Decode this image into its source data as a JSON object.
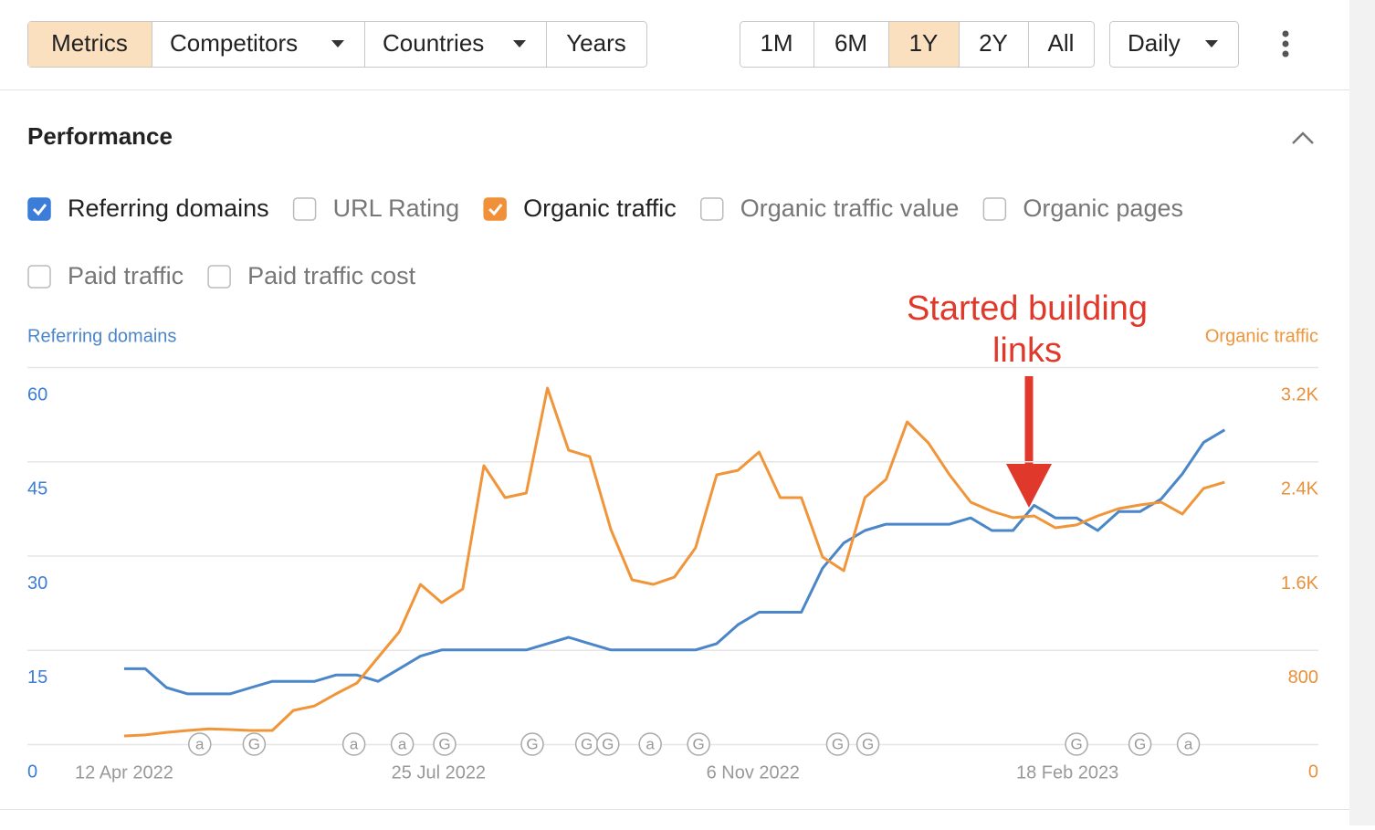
{
  "toolbar": {
    "tabs": [
      {
        "label": "Metrics",
        "selected": true
      },
      {
        "label": "Competitors",
        "dropdown": true
      },
      {
        "label": "Countries",
        "dropdown": true
      },
      {
        "label": "Years"
      }
    ],
    "ranges": [
      {
        "label": "1M"
      },
      {
        "label": "6M"
      },
      {
        "label": "1Y",
        "selected": true
      },
      {
        "label": "2Y"
      },
      {
        "label": "All"
      }
    ],
    "interval": {
      "label": "Daily",
      "dropdown": true
    }
  },
  "section_title": "Performance",
  "checkboxes": [
    {
      "label": "Referring domains",
      "checked": true,
      "color": "#3b7dd8"
    },
    {
      "label": "URL Rating",
      "checked": false
    },
    {
      "label": "Organic traffic",
      "checked": true,
      "color": "#f0913a"
    },
    {
      "label": "Organic traffic value",
      "checked": false
    },
    {
      "label": "Organic pages",
      "checked": false
    },
    {
      "label": "Paid traffic",
      "checked": false
    },
    {
      "label": "Paid traffic cost",
      "checked": false
    }
  ],
  "chart_data": {
    "type": "line",
    "ylabel": "Referring domains",
    "y2label": "Organic traffic",
    "annotation": "Started building links",
    "x": [
      "2022-04-12",
      "2022-04-19",
      "2022-04-26",
      "2022-05-03",
      "2022-05-10",
      "2022-05-17",
      "2022-05-24",
      "2022-05-31",
      "2022-06-07",
      "2022-06-14",
      "2022-06-21",
      "2022-06-28",
      "2022-07-05",
      "2022-07-12",
      "2022-07-19",
      "2022-07-26",
      "2022-08-02",
      "2022-08-09",
      "2022-08-16",
      "2022-08-23",
      "2022-08-30",
      "2022-09-06",
      "2022-09-13",
      "2022-09-20",
      "2022-09-27",
      "2022-10-04",
      "2022-10-11",
      "2022-10-18",
      "2022-10-25",
      "2022-11-01",
      "2022-11-08",
      "2022-11-15",
      "2022-11-22",
      "2022-11-29",
      "2022-12-06",
      "2022-12-13",
      "2022-12-20",
      "2022-12-27",
      "2023-01-03",
      "2023-01-10",
      "2023-01-17",
      "2023-01-24",
      "2023-01-31",
      "2023-02-07",
      "2023-02-14",
      "2023-02-21",
      "2023-02-28",
      "2023-03-07",
      "2023-03-14",
      "2023-03-21",
      "2023-03-28",
      "2023-04-04",
      "2023-04-11"
    ],
    "series": [
      {
        "name": "Referring domains",
        "color": "#4a86c8",
        "axis": "y",
        "values": [
          12,
          12,
          9,
          8,
          8,
          8,
          9,
          10,
          10,
          10,
          11,
          11,
          10,
          12,
          14,
          15,
          15,
          15,
          15,
          15,
          16,
          17,
          16,
          15,
          15,
          15,
          15,
          15,
          16,
          19,
          21,
          21,
          21,
          28,
          32,
          34,
          35,
          35,
          35,
          35,
          36,
          34,
          34,
          38,
          36,
          36,
          34,
          37,
          37,
          39,
          43,
          48,
          50
        ]
      },
      {
        "name": "Organic traffic",
        "color": "#f0953a",
        "axis": "y2",
        "values": [
          70,
          78,
          100,
          116,
          130,
          124,
          116,
          116,
          287,
          325,
          426,
          519,
          736,
          953,
          1356,
          1201,
          1317,
          2363,
          2092,
          2131,
          3022,
          2494,
          2440,
          1821,
          1395,
          1356,
          1418,
          1666,
          2286,
          2324,
          2479,
          2092,
          2092,
          1588,
          1472,
          2092,
          2247,
          2735,
          2557,
          2286,
          2053,
          1976,
          1922,
          1937,
          1836,
          1860,
          1937,
          1999,
          2030,
          2053,
          1953,
          2170,
          2223
        ]
      }
    ],
    "xlim": [
      "2022-03-11",
      "2023-05-12"
    ],
    "xticks": [
      {
        "value": "2022-04-12",
        "label": "12 Apr 2022"
      },
      {
        "value": "2022-07-25",
        "label": "25 Jul 2022"
      },
      {
        "value": "2022-11-06",
        "label": "6 Nov 2022"
      },
      {
        "value": "2023-02-18",
        "label": "18 Feb 2023"
      }
    ],
    "ylim": [
      0,
      60
    ],
    "yticks": [
      0,
      15,
      30,
      45,
      60
    ],
    "y2lim": [
      0,
      3200
    ],
    "y2ticks": [
      0,
      800,
      {
        "value": 1600,
        "label": "1.6K"
      },
      {
        "value": 2400,
        "label": "2.4K"
      },
      {
        "value": 3200,
        "label": "3.2K"
      }
    ],
    "grid": true,
    "events": [
      {
        "x": "2022-05-07",
        "label": "a"
      },
      {
        "x": "2022-05-25",
        "label": "G"
      },
      {
        "x": "2022-06-27",
        "label": "a"
      },
      {
        "x": "2022-07-13",
        "label": "a"
      },
      {
        "x": "2022-07-27",
        "label": "G"
      },
      {
        "x": "2022-08-25",
        "label": "G"
      },
      {
        "x": "2022-09-12",
        "label": "G"
      },
      {
        "x": "2022-09-19",
        "label": "G"
      },
      {
        "x": "2022-10-03",
        "label": "a"
      },
      {
        "x": "2022-10-19",
        "label": "G"
      },
      {
        "x": "2022-12-04",
        "label": "G"
      },
      {
        "x": "2022-12-14",
        "label": "G"
      },
      {
        "x": "2023-02-21",
        "label": "G"
      },
      {
        "x": "2023-03-14",
        "label": "G"
      },
      {
        "x": "2023-03-30",
        "label": "a"
      }
    ]
  }
}
